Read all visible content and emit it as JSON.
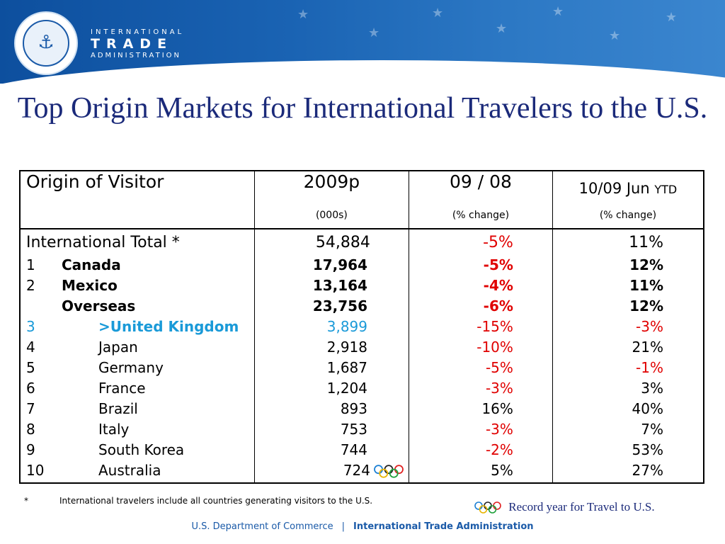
{
  "header": {
    "org_line1": "INTERNATIONAL",
    "org_line2": "TRADE",
    "org_line3": "ADMINISTRATION"
  },
  "title": "Top Origin Markets for International Travelers to the U.S.",
  "table": {
    "headers": {
      "origin": "Origin of Visitor",
      "col1": "2009p",
      "col1_sub": "(000s)",
      "col2": "09 / 08",
      "col2_sub": "(% change)",
      "col3_main": "10/09 Jun",
      "col3_suffix": "YTD",
      "col3_sub": "(% change)"
    },
    "total": {
      "label": "International Total *",
      "v2009": "54,884",
      "change": "-5%",
      "ytd": "11%"
    },
    "rows": [
      {
        "rank": "1",
        "name": "Canada",
        "v2009": "17,964",
        "change": "-5%",
        "ytd": "12%"
      },
      {
        "rank": "2",
        "name": "Mexico",
        "v2009": "13,164",
        "change": "-4%",
        "ytd": "11%"
      },
      {
        "rank": "",
        "name": "Overseas",
        "v2009": "23,756",
        "change": "-6%",
        "ytd": "12%"
      },
      {
        "rank": "3",
        "name": ">United Kingdom",
        "v2009": "3,899",
        "change": "-15%",
        "ytd": "-3%"
      },
      {
        "rank": "4",
        "name": "Japan",
        "v2009": "2,918",
        "change": "-10%",
        "ytd": "21%"
      },
      {
        "rank": "5",
        "name": "Germany",
        "v2009": "1,687",
        "change": "-5%",
        "ytd": "-1%"
      },
      {
        "rank": "6",
        "name": "France",
        "v2009": "1,204",
        "change": "-3%",
        "ytd": "3%"
      },
      {
        "rank": "7",
        "name": "Brazil",
        "v2009": "893",
        "change": "16%",
        "ytd": "40%"
      },
      {
        "rank": "8",
        "name": "Italy",
        "v2009": "753",
        "change": "-3%",
        "ytd": "7%"
      },
      {
        "rank": "9",
        "name": "South Korea",
        "v2009": "744",
        "change": "-2%",
        "ytd": "53%"
      },
      {
        "rank": "10",
        "name": "Australia",
        "v2009": "724",
        "change": "5%",
        "ytd": "27%"
      }
    ]
  },
  "footnote": {
    "mark": "*",
    "text": "International travelers include all countries generating visitors to the U.S."
  },
  "legend": {
    "text": "Record year for Travel to U.S.",
    "icon": "olympic-rings-icon"
  },
  "footer": {
    "left": "U.S. Department of Commerce",
    "separator": "|",
    "right": "International Trade Administration"
  },
  "colors": {
    "title": "#1b2a7a",
    "negative": "#e00000",
    "highlight": "#1a9ad8",
    "banner": "#1a63b3"
  }
}
